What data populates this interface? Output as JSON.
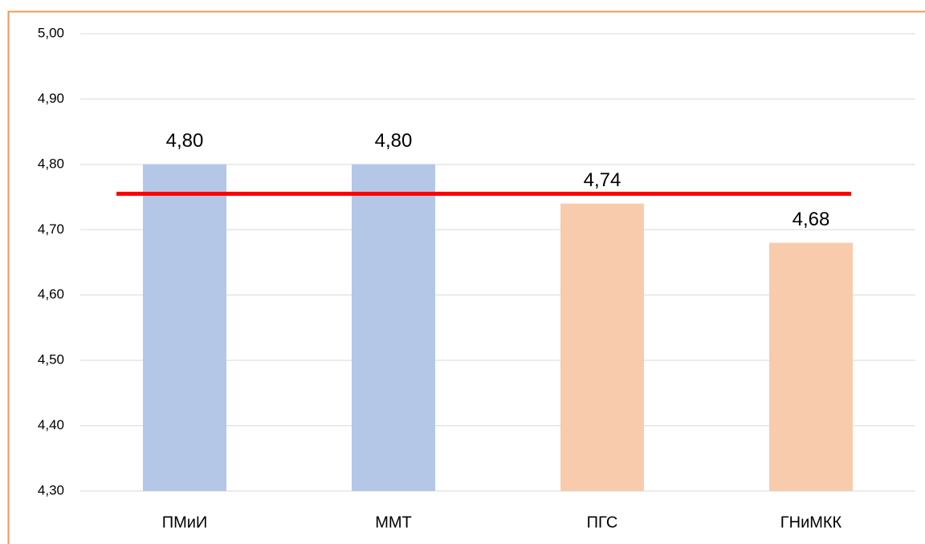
{
  "chart_data": {
    "type": "bar",
    "categories": [
      "ПМиИ",
      "ММТ",
      "ПГС",
      "ГНиМКК"
    ],
    "values": [
      4.8,
      4.8,
      4.74,
      4.68
    ],
    "value_labels": [
      "4,80",
      "4,80",
      "4,74",
      "4,68"
    ],
    "colors": [
      "#b4c7e7",
      "#b4c7e7",
      "#f8cbad",
      "#f8cbad"
    ],
    "ylim": [
      4.3,
      5.0
    ],
    "yticks": [
      {
        "value": 4.3,
        "label": "4,30"
      },
      {
        "value": 4.4,
        "label": "4,40"
      },
      {
        "value": 4.5,
        "label": "4,50"
      },
      {
        "value": 4.6,
        "label": "4,60"
      },
      {
        "value": 4.7,
        "label": "4,70"
      },
      {
        "value": 4.8,
        "label": "4,80"
      },
      {
        "value": 4.9,
        "label": "4,90"
      },
      {
        "value": 5.0,
        "label": "5,00"
      }
    ],
    "grid": true,
    "reference_line": {
      "value": 4.755,
      "color": "#ff0000"
    }
  }
}
